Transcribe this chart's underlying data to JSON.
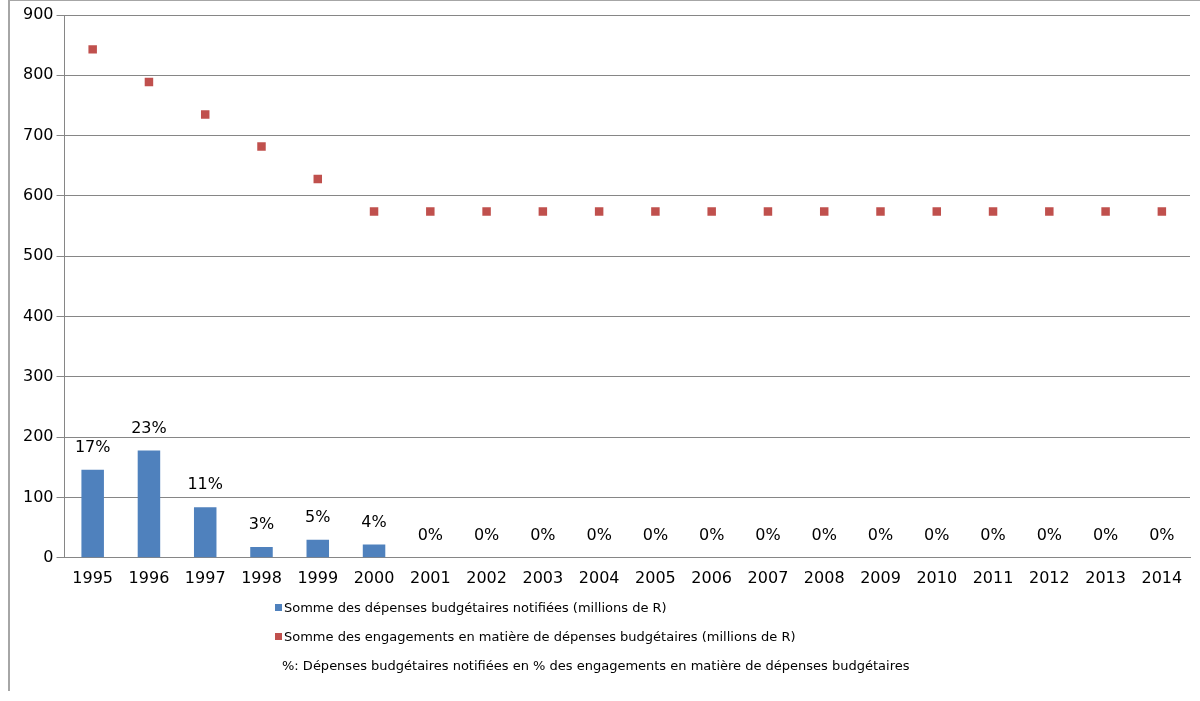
{
  "chart_data": {
    "type": "bar",
    "categories": [
      "1995",
      "1996",
      "1997",
      "1998",
      "1999",
      "2000",
      "2001",
      "2002",
      "2003",
      "2004",
      "2005",
      "2006",
      "2007",
      "2008",
      "2009",
      "2010",
      "2011",
      "2012",
      "2013",
      "2014"
    ],
    "series": [
      {
        "name": "Somme des dépenses budgétaires notifiées (millions de R)",
        "color": "#4f81bd",
        "values": [
          146,
          178,
          84,
          18,
          30,
          22,
          0,
          0,
          0,
          0,
          0,
          0,
          0,
          0,
          0,
          0,
          0,
          0,
          0,
          0
        ]
      },
      {
        "name": "Somme des engagements en matière de dépenses budgétaires (millions de R)",
        "type": "scatter",
        "color": "#c0504d",
        "values": [
          843,
          789,
          735,
          682,
          628,
          574,
          574,
          574,
          574,
          574,
          574,
          574,
          574,
          574,
          574,
          574,
          574,
          574,
          574,
          574
        ]
      }
    ],
    "ylim": [
      0,
      900
    ],
    "yticks": [
      0,
      100,
      200,
      300,
      400,
      500,
      600,
      700,
      800,
      900
    ],
    "grid": "y",
    "legend": "bottom",
    "marker": "square",
    "annotations": [
      {
        "text": "17%",
        "x": "1995",
        "y": 146
      },
      {
        "text": "23%",
        "x": "1996",
        "y": 178
      },
      {
        "text": "11%",
        "x": "1997",
        "y": 84
      },
      {
        "text": "3%",
        "x": "1998",
        "y": 18
      },
      {
        "text": "5%",
        "x": "1999",
        "y": 30
      },
      {
        "text": "4%",
        "x": "2000",
        "y": 22
      },
      {
        "text": "0%",
        "x": "2001",
        "y": 0
      },
      {
        "text": "0%",
        "x": "2002",
        "y": 0
      },
      {
        "text": "0%",
        "x": "2003",
        "y": 0
      },
      {
        "text": "0%",
        "x": "2004",
        "y": 0
      },
      {
        "text": "0%",
        "x": "2005",
        "y": 0
      },
      {
        "text": "0%",
        "x": "2006",
        "y": 0
      },
      {
        "text": "0%",
        "x": "2007",
        "y": 0
      },
      {
        "text": "0%",
        "x": "2008",
        "y": 0
      },
      {
        "text": "0%",
        "x": "2009",
        "y": 0
      },
      {
        "text": "0%",
        "x": "2010",
        "y": 0
      },
      {
        "text": "0%",
        "x": "2011",
        "y": 0
      },
      {
        "text": "0%",
        "x": "2012",
        "y": 0
      },
      {
        "text": "0%",
        "x": "2013",
        "y": 0
      },
      {
        "text": "0%",
        "x": "2014",
        "y": 0
      },
      "%: Dépenses budgétaires notifiées en % des engagements en matière de dépenses budgétaires"
    ]
  }
}
